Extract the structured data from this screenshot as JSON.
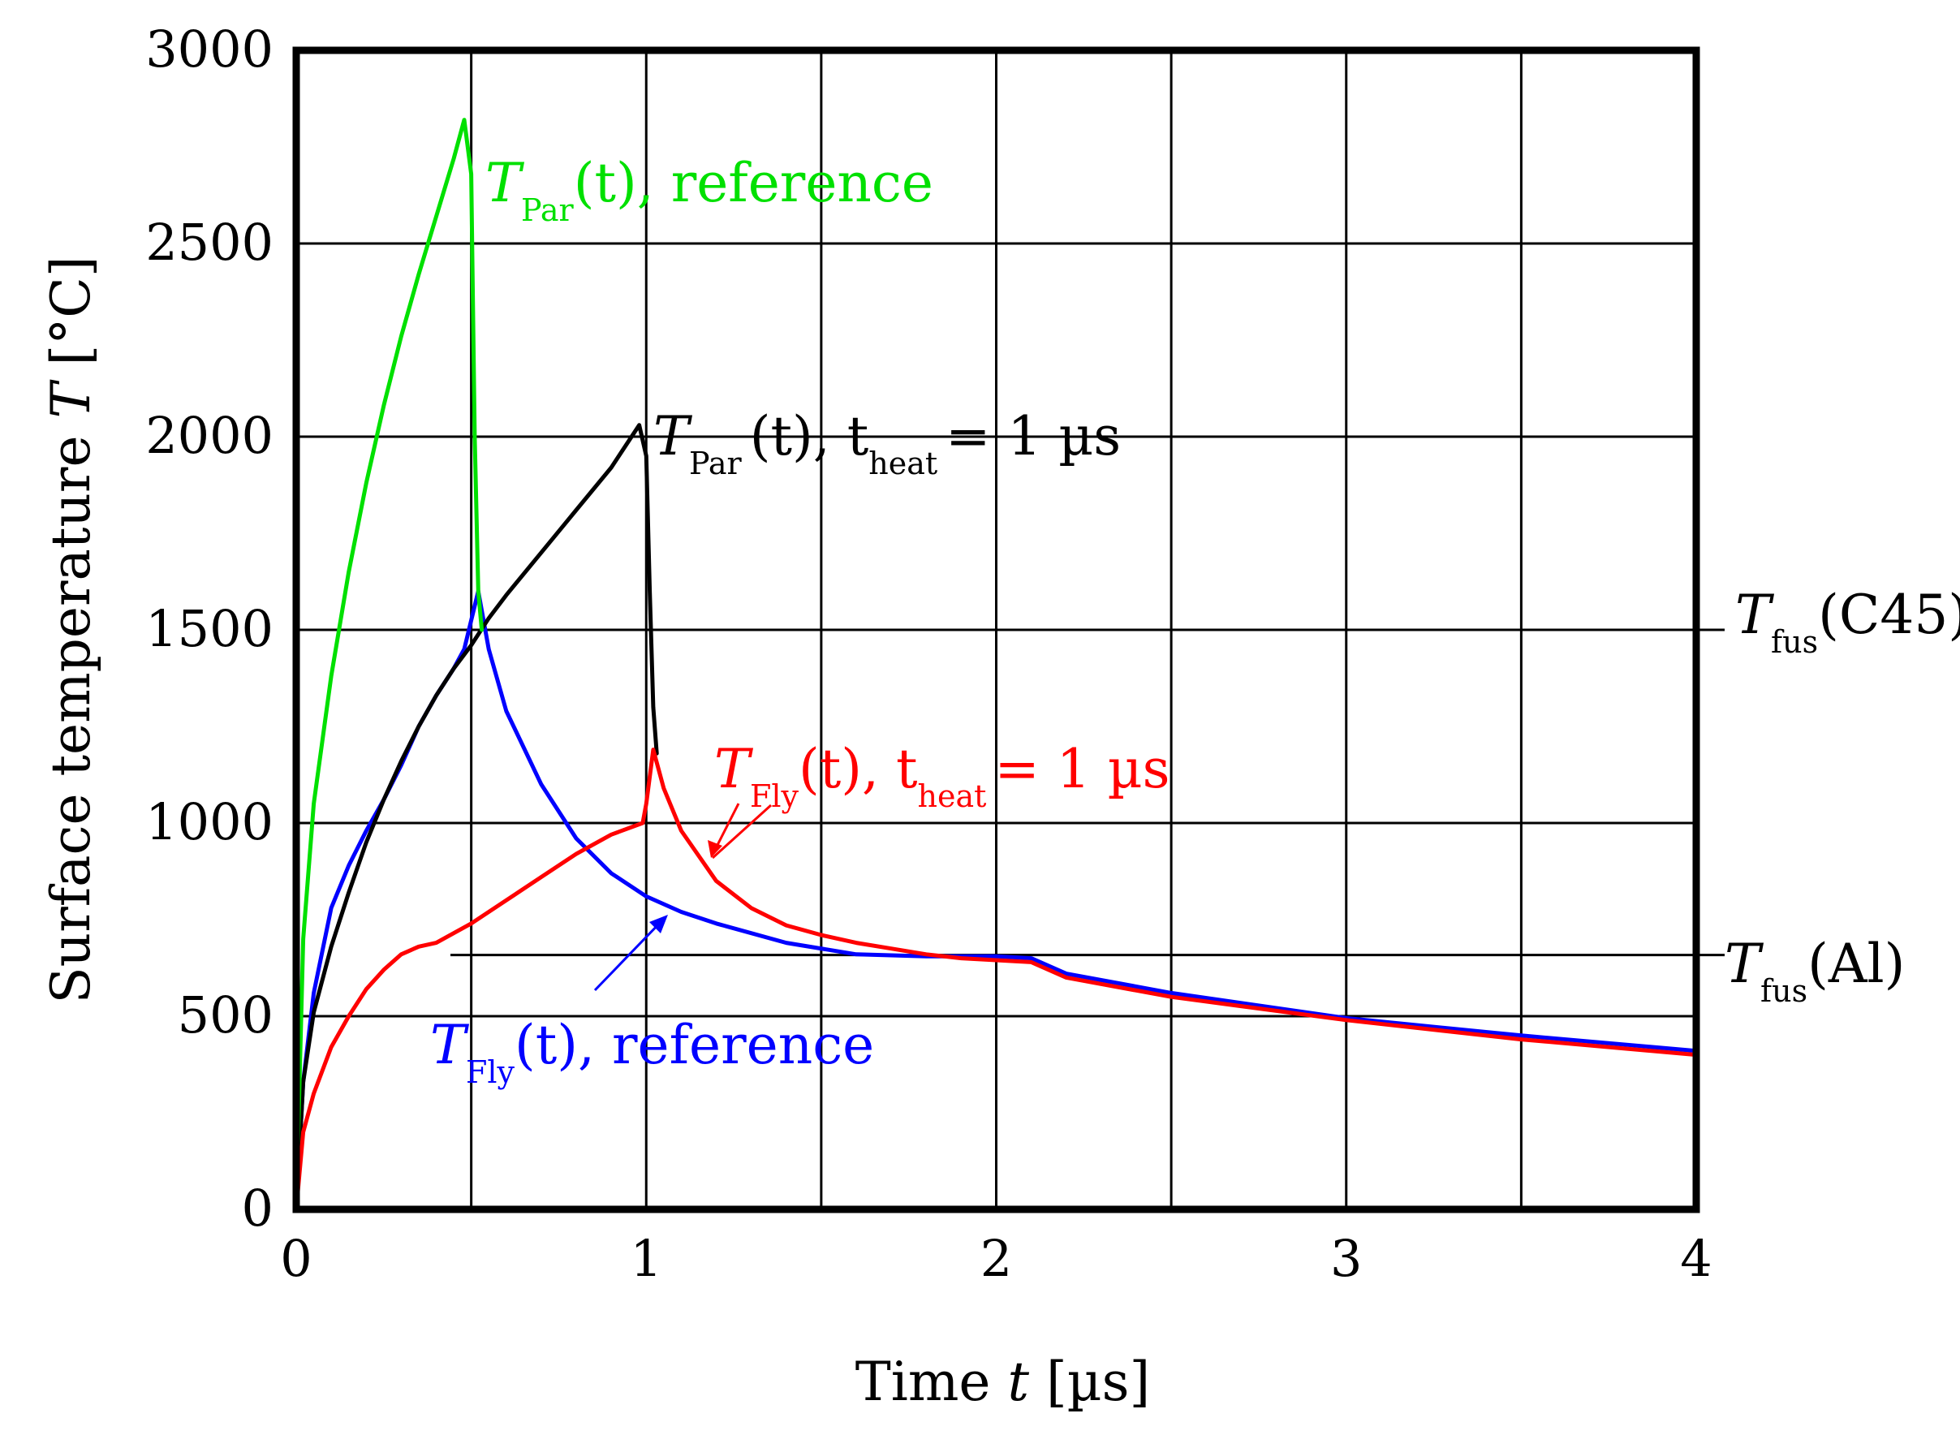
{
  "chart_data": {
    "type": "line",
    "xlabel": "Time t [µs]",
    "ylabel": "Surface temperature T [°C]",
    "xlim": [
      0,
      4
    ],
    "ylim": [
      0,
      3000
    ],
    "x_ticks": [
      0,
      1,
      2,
      3,
      4
    ],
    "y_ticks": [
      0,
      500,
      1000,
      1500,
      2000,
      2500,
      3000
    ],
    "grid": "on (vertical every 0.5 µs, horizontal every 500 °C)",
    "colors": {
      "green": "#00e000",
      "black": "#000000",
      "blue": "#0000ff",
      "red": "#ff0000"
    },
    "series": [
      {
        "name": "T_Par(t), reference",
        "color": "green",
        "x": [
          0,
          0.02,
          0.05,
          0.1,
          0.15,
          0.2,
          0.25,
          0.3,
          0.35,
          0.4,
          0.45,
          0.48,
          0.5,
          0.51,
          0.52,
          0.53
        ],
        "y": [
          0,
          700,
          1050,
          1380,
          1650,
          1880,
          2080,
          2260,
          2420,
          2570,
          2720,
          2820,
          2680,
          2000,
          1600,
          1500
        ]
      },
      {
        "name": "T_Par(t), t_heat = 1 µs",
        "color": "black",
        "x": [
          0,
          0.02,
          0.05,
          0.1,
          0.15,
          0.2,
          0.25,
          0.3,
          0.35,
          0.4,
          0.45,
          0.5,
          0.55,
          0.6,
          0.7,
          0.8,
          0.9,
          0.98,
          1.0,
          1.01,
          1.02,
          1.03
        ],
        "y": [
          0,
          330,
          510,
          680,
          820,
          950,
          1060,
          1160,
          1250,
          1330,
          1400,
          1460,
          1530,
          1590,
          1700,
          1810,
          1920,
          2030,
          1950,
          1600,
          1300,
          1180
        ]
      },
      {
        "name": "T_Fly(t), reference",
        "color": "blue",
        "x": [
          0,
          0.02,
          0.05,
          0.1,
          0.15,
          0.2,
          0.25,
          0.3,
          0.35,
          0.4,
          0.45,
          0.48,
          0.52,
          0.55,
          0.6,
          0.7,
          0.8,
          0.9,
          1.0,
          1.1,
          1.2,
          1.4,
          1.6,
          1.8,
          2.0,
          2.1,
          2.2,
          2.5,
          3.0,
          3.5,
          4.0
        ],
        "y": [
          0,
          330,
          560,
          780,
          890,
          980,
          1060,
          1150,
          1250,
          1330,
          1400,
          1450,
          1600,
          1450,
          1290,
          1100,
          960,
          870,
          810,
          770,
          740,
          690,
          660,
          655,
          655,
          650,
          610,
          560,
          495,
          450,
          410
        ]
      },
      {
        "name": "T_Fly(t), t_heat = 1 µs",
        "color": "red",
        "x": [
          0,
          0.02,
          0.05,
          0.1,
          0.15,
          0.2,
          0.25,
          0.3,
          0.35,
          0.4,
          0.5,
          0.6,
          0.7,
          0.8,
          0.9,
          0.99,
          1.0,
          1.02,
          1.05,
          1.1,
          1.2,
          1.3,
          1.4,
          1.5,
          1.6,
          1.7,
          1.8,
          1.9,
          2.0,
          2.1,
          2.2,
          2.5,
          3.0,
          3.5,
          4.0
        ],
        "y": [
          0,
          200,
          300,
          420,
          500,
          570,
          620,
          660,
          680,
          690,
          740,
          800,
          860,
          920,
          970,
          1000,
          1050,
          1190,
          1090,
          980,
          850,
          780,
          735,
          710,
          690,
          675,
          660,
          650,
          645,
          640,
          600,
          550,
          490,
          440,
          400
        ]
      }
    ],
    "reference_lines": [
      {
        "y": 1500,
        "color": "black"
      },
      {
        "y": 650,
        "color": "black"
      }
    ]
  },
  "labels": {
    "ylabel_prefix": "Surface temperature",
    "ylabel_var": "T",
    "ylabel_unit": "[°C]",
    "xlabel_prefix": "Time",
    "xlabel_var": "t",
    "xlabel_unit": "[µs]",
    "green_main": "T",
    "green_sub": "Par",
    "green_rest": "(t), reference",
    "black_main": "T",
    "black_sub": "Par",
    "black_rest": "(t), t",
    "black_heat": "heat",
    "black_tail": "= 1 µs",
    "red_main": "T",
    "red_sub": "Fly",
    "red_rest": "(t), t",
    "red_heat": "heat",
    "red_tail": "= 1 µs",
    "blue_main": "T",
    "blue_sub": "Fly",
    "blue_rest": "(t), reference",
    "c45_main": "T",
    "c45_sub": "fus",
    "c45_rest": "(C45)",
    "al_main": "T",
    "al_sub": "fus",
    "al_rest": "(Al)"
  }
}
